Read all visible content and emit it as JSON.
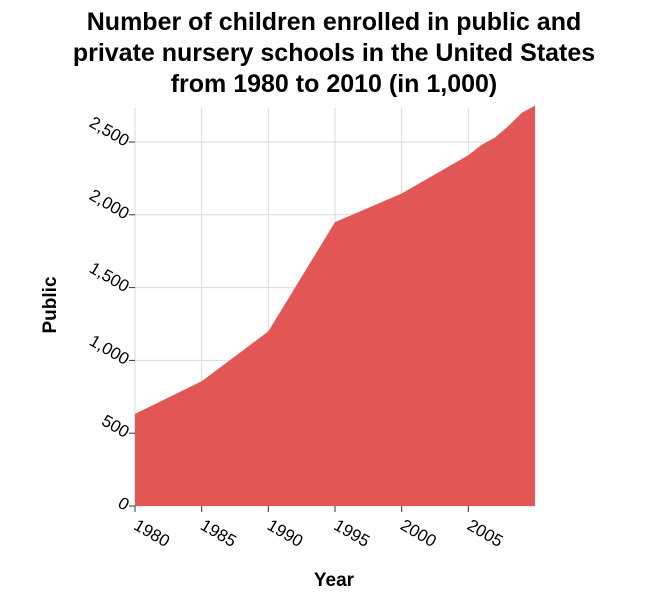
{
  "chart_data": {
    "type": "area",
    "title_lines": [
      "Number of children enrolled in public and",
      "private nursery schools in the United States",
      "from 1980 to 2010 (in 1,000)"
    ],
    "xlabel": "Year",
    "ylabel": "Public",
    "x_ticks": [
      1980,
      1985,
      1990,
      1995,
      2000,
      2005
    ],
    "x_tick_labels": [
      "1980",
      "1985",
      "1990",
      "1995",
      "2000",
      "2005"
    ],
    "y_ticks": [
      0,
      500,
      1000,
      1500,
      2000,
      2500
    ],
    "y_tick_labels": [
      "0",
      "500",
      "1,000",
      "1,500",
      "2,000",
      "2,500"
    ],
    "xlim": [
      1980,
      2010
    ],
    "ylim": [
      0,
      2500
    ],
    "grid": true,
    "color": "#e35656",
    "series": [
      {
        "x": [
          1980,
          1985,
          1990,
          1995,
          2000,
          2005,
          2006,
          2007,
          2008,
          2009,
          2010
        ],
        "values": [
          633,
          857,
          1199,
          1950,
          2146,
          2409,
          2481,
          2531,
          2609,
          2700,
          2750
        ]
      }
    ]
  }
}
